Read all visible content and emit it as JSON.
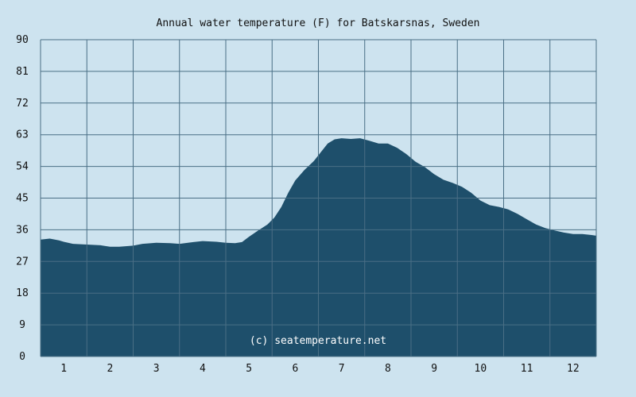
{
  "chart_data": {
    "type": "area",
    "title": "Annual water temperature (F) for Batskarsnas, Sweden",
    "xlabel": "",
    "ylabel": "",
    "ylim": [
      0,
      90
    ],
    "yticks": [
      "0",
      "9",
      "18",
      "27",
      "36",
      "45",
      "54",
      "63",
      "72",
      "81",
      "90"
    ],
    "xticks": [
      "1",
      "2",
      "3",
      "4",
      "5",
      "6",
      "7",
      "8",
      "9",
      "10",
      "11",
      "12"
    ],
    "xlim": [
      0.5,
      12.5
    ],
    "grid": true,
    "watermark": "(c) seatemperature.net",
    "colors": {
      "background": "#cde3ef",
      "area_fill": "#1e4f6b",
      "grid": "#4a6f85"
    },
    "series": [
      {
        "x": [
          0.5,
          0.7,
          0.9,
          1.0,
          1.2,
          1.5,
          1.8,
          2.0,
          2.2,
          2.5,
          2.7,
          3.0,
          3.3,
          3.5,
          3.8,
          4.0,
          4.3,
          4.5,
          4.7,
          4.85,
          5.0,
          5.2,
          5.4,
          5.55,
          5.7,
          5.85,
          6.0,
          6.2,
          6.4,
          6.55,
          6.7,
          6.85,
          7.0,
          7.2,
          7.4,
          7.6,
          7.8,
          8.0,
          8.2,
          8.4,
          8.6,
          8.8,
          9.0,
          9.2,
          9.4,
          9.6,
          9.8,
          10.0,
          10.2,
          10.4,
          10.6,
          10.8,
          11.0,
          11.2,
          11.4,
          11.6,
          11.8,
          12.0,
          12.2,
          12.4,
          12.5
        ],
        "y": [
          33.2,
          33.5,
          33.0,
          32.6,
          32.0,
          31.8,
          31.6,
          31.2,
          31.2,
          31.5,
          32.0,
          32.3,
          32.2,
          32.0,
          32.5,
          32.8,
          32.6,
          32.3,
          32.2,
          32.5,
          34.0,
          35.8,
          37.5,
          39.5,
          42.5,
          46.5,
          50.0,
          53.0,
          55.5,
          58.0,
          60.5,
          61.7,
          62.0,
          61.8,
          62.0,
          61.3,
          60.5,
          60.5,
          59.3,
          57.5,
          55.3,
          53.8,
          51.8,
          50.2,
          49.3,
          48.2,
          46.5,
          44.3,
          43.0,
          42.5,
          41.8,
          40.5,
          39.0,
          37.5,
          36.5,
          35.8,
          35.2,
          34.8,
          34.8,
          34.5,
          34.3
        ]
      }
    ]
  }
}
